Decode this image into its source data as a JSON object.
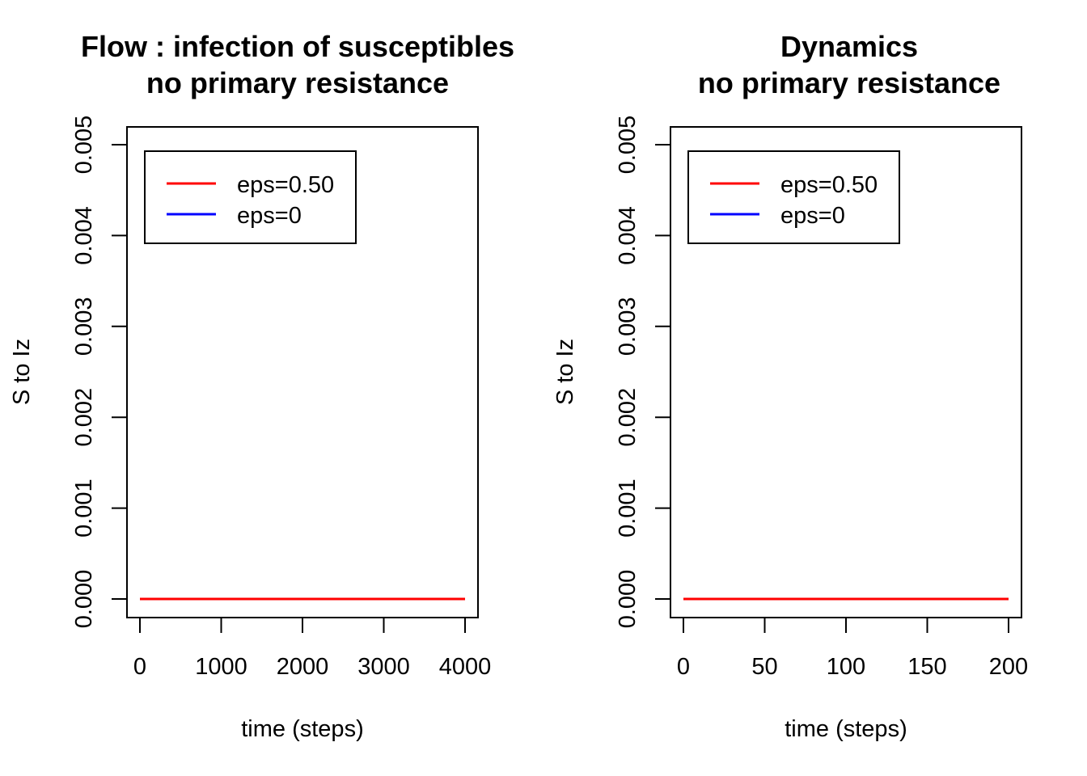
{
  "colors": {
    "eps_050": "#ff0000",
    "eps_0": "#0000ff",
    "axis": "#000000",
    "background": "#ffffff"
  },
  "chart_data": [
    {
      "type": "line",
      "title": "Flow : infection of susceptibles",
      "subtitle": "no primary resistance",
      "xlabel": "time (steps)",
      "ylabel": "S to Iz",
      "xlim": [
        0,
        4000
      ],
      "ylim": [
        0,
        0.005
      ],
      "xticks": [
        "0",
        "1000",
        "2000",
        "3000",
        "4000"
      ],
      "yticks": [
        "0.000",
        "0.001",
        "0.002",
        "0.003",
        "0.004",
        "0.005"
      ],
      "legend_position": "top-left",
      "grid": false,
      "series": [
        {
          "name": "eps=0.50",
          "color": "#ff0000",
          "x": [
            0,
            4000
          ],
          "y": [
            0,
            0
          ]
        },
        {
          "name": "eps=0",
          "color": "#0000ff",
          "x": [
            0,
            4000
          ],
          "y": [
            0,
            0
          ]
        }
      ]
    },
    {
      "type": "line",
      "title": "Dynamics",
      "subtitle": "no primary resistance",
      "xlabel": "time (steps)",
      "ylabel": "S to Iz",
      "xlim": [
        0,
        200
      ],
      "ylim": [
        0,
        0.005
      ],
      "xticks": [
        "0",
        "50",
        "100",
        "150",
        "200"
      ],
      "yticks": [
        "0.000",
        "0.001",
        "0.002",
        "0.003",
        "0.004",
        "0.005"
      ],
      "legend_position": "top-left",
      "grid": false,
      "series": [
        {
          "name": "eps=0.50",
          "color": "#ff0000",
          "x": [
            0,
            200
          ],
          "y": [
            0,
            0
          ]
        },
        {
          "name": "eps=0",
          "color": "#0000ff",
          "x": [
            0,
            200
          ],
          "y": [
            0,
            0
          ]
        }
      ]
    }
  ]
}
